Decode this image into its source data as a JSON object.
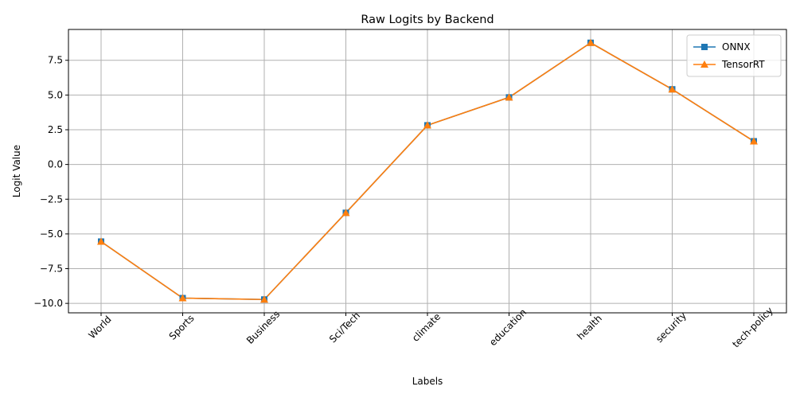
{
  "chart_data": {
    "type": "line",
    "title": "Raw Logits by Backend",
    "xlabel": "Labels",
    "ylabel": "Logit Value",
    "categories": [
      "World",
      "Sports",
      "Business",
      "Sci/Tech",
      "climate",
      "education",
      "health",
      "security",
      "tech-policy"
    ],
    "series": [
      {
        "name": "ONNX",
        "color": "#1f77b4",
        "marker": "square",
        "values": [
          -5.55,
          -9.62,
          -9.72,
          -3.48,
          2.82,
          4.83,
          8.76,
          5.41,
          1.67
        ]
      },
      {
        "name": "TensorRT",
        "color": "#ff7f0e",
        "marker": "triangle-up",
        "values": [
          -5.55,
          -9.62,
          -9.72,
          -3.48,
          2.82,
          4.83,
          8.76,
          5.41,
          1.67
        ]
      }
    ],
    "ylim": [
      -10.68,
      9.72
    ],
    "yticks": [
      -10.0,
      -7.5,
      -5.0,
      -2.5,
      0.0,
      2.5,
      5.0,
      7.5
    ],
    "ytick_labels": [
      "−10.0",
      "−7.5",
      "−5.0",
      "−2.5",
      "0.0",
      "2.5",
      "5.0",
      "7.5"
    ],
    "grid": true,
    "legend_position": "top-right"
  }
}
